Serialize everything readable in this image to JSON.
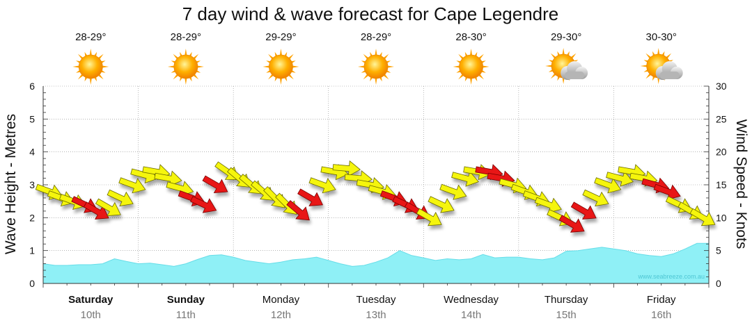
{
  "chart_data": {
    "type": "line",
    "title": "7 day wind & wave forecast for Cape Legendre",
    "left_axis": {
      "label": "Wave Height - Metres",
      "range": [
        0,
        6
      ],
      "ticks": [
        "0",
        "1",
        "2",
        "3",
        "4",
        "5",
        "6"
      ]
    },
    "right_axis": {
      "label": "Wind Speed - Knots",
      "range": [
        0,
        30
      ],
      "ticks": [
        "0",
        "5",
        "10",
        "15",
        "20",
        "25",
        "30"
      ]
    },
    "days": [
      {
        "day": "Saturday",
        "date": "10th",
        "temp": "28-29°",
        "weather": "sunny",
        "bold": true
      },
      {
        "day": "Sunday",
        "date": "11th",
        "temp": "28-29°",
        "weather": "sunny",
        "bold": true
      },
      {
        "day": "Monday",
        "date": "12th",
        "temp": "29-29°",
        "weather": "sunny",
        "bold": false
      },
      {
        "day": "Tuesday",
        "date": "13th",
        "temp": "28-29°",
        "weather": "sunny",
        "bold": false
      },
      {
        "day": "Wednesday",
        "date": "14th",
        "temp": "28-30°",
        "weather": "sunny",
        "bold": false
      },
      {
        "day": "Thursday",
        "date": "15th",
        "temp": "29-30°",
        "weather": "partly-cloudy",
        "bold": false
      },
      {
        "day": "Friday",
        "date": "16th",
        "temp": "30-30°",
        "weather": "partly-cloudy",
        "bold": false
      }
    ],
    "wave_series": {
      "name": "Wave Height (m)",
      "step_hours": 3,
      "values": [
        0.6,
        0.55,
        0.55,
        0.57,
        0.57,
        0.6,
        0.75,
        0.67,
        0.6,
        0.62,
        0.57,
        0.52,
        0.6,
        0.73,
        0.85,
        0.87,
        0.8,
        0.7,
        0.65,
        0.6,
        0.65,
        0.72,
        0.75,
        0.8,
        0.7,
        0.6,
        0.52,
        0.55,
        0.65,
        0.78,
        1.0,
        0.85,
        0.78,
        0.7,
        0.75,
        0.72,
        0.75,
        0.88,
        0.78,
        0.8,
        0.8,
        0.75,
        0.72,
        0.78,
        0.98,
        1.0,
        1.05,
        1.1,
        1.05,
        1.0,
        0.9,
        0.85,
        0.82,
        0.9,
        1.05,
        1.22
      ]
    },
    "wind_series": {
      "name": "Wind Speed (kn)",
      "step_hours": 3,
      "speed_kn": [
        14,
        13,
        12.5,
        12,
        11,
        11.5,
        13,
        15,
        16.5,
        17,
        16,
        14.5,
        13,
        12,
        15,
        17,
        16,
        15,
        14,
        13,
        12,
        11,
        13,
        15,
        17,
        17.5,
        16,
        15,
        14,
        13,
        12,
        11,
        10,
        12,
        14,
        16,
        17,
        17,
        16,
        15,
        14,
        13,
        12,
        10,
        9,
        11,
        13,
        15,
        16,
        17,
        16,
        15,
        14,
        12,
        11,
        10
      ],
      "direction_deg": [
        290,
        290,
        290,
        295,
        300,
        300,
        295,
        290,
        285,
        280,
        280,
        285,
        290,
        295,
        300,
        305,
        310,
        310,
        310,
        315,
        315,
        310,
        300,
        290,
        280,
        275,
        275,
        280,
        285,
        290,
        295,
        300,
        300,
        295,
        290,
        285,
        280,
        280,
        280,
        285,
        290,
        290,
        290,
        295,
        300,
        300,
        295,
        290,
        285,
        280,
        280,
        285,
        290,
        295,
        300,
        300
      ],
      "category": [
        "yellow",
        "yellow",
        "yellow",
        "red",
        "red",
        "yellow",
        "yellow",
        "yellow",
        "yellow",
        "yellow",
        "yellow",
        "yellow",
        "red",
        "red",
        "red",
        "yellow",
        "yellow",
        "yellow",
        "yellow",
        "yellow",
        "yellow",
        "red",
        "red",
        "yellow",
        "yellow",
        "yellow",
        "yellow",
        "yellow",
        "yellow",
        "red",
        "red",
        "red",
        "yellow",
        "yellow",
        "yellow",
        "yellow",
        "yellow",
        "red",
        "red",
        "yellow",
        "yellow",
        "yellow",
        "yellow",
        "yellow",
        "red",
        "red",
        "yellow",
        "yellow",
        "yellow",
        "yellow",
        "yellow",
        "red",
        "red",
        "yellow",
        "yellow",
        "yellow"
      ]
    },
    "grid": true,
    "watermark": "www.seabreeze.com.au",
    "colors": {
      "wave_fill": "#8ff0f6",
      "wave_line": "#66dde8",
      "arrow_yellow": "#f5f50a",
      "arrow_red": "#e81414",
      "grid": "#888888",
      "axis": "#333333"
    }
  }
}
